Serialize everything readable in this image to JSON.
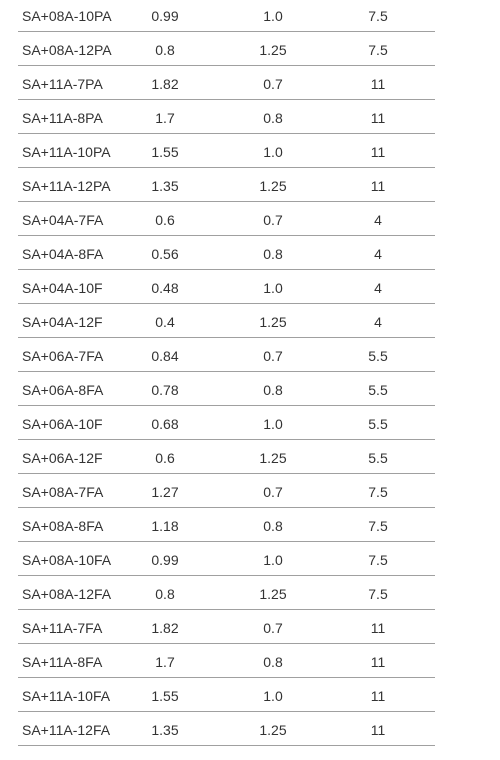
{
  "table": {
    "rows": [
      [
        "SA+08A-10PA",
        "0.99",
        "1.0",
        "7.5"
      ],
      [
        "SA+08A-12PA",
        "0.8",
        "1.25",
        "7.5"
      ],
      [
        "SA+11A-7PA",
        "1.82",
        "0.7",
        "11"
      ],
      [
        "SA+11A-8PA",
        "1.7",
        "0.8",
        "11"
      ],
      [
        "SA+11A-10PA",
        "1.55",
        "1.0",
        "11"
      ],
      [
        "SA+11A-12PA",
        "1.35",
        "1.25",
        "11"
      ],
      [
        "SA+04A-7FA",
        "0.6",
        "0.7",
        "4"
      ],
      [
        "SA+04A-8FA",
        "0.56",
        "0.8",
        "4"
      ],
      [
        "SA+04A-10F",
        "0.48",
        "1.0",
        "4"
      ],
      [
        "SA+04A-12F",
        "0.4",
        "1.25",
        "4"
      ],
      [
        "SA+06A-7FA",
        "0.84",
        "0.7",
        "5.5"
      ],
      [
        "SA+06A-8FA",
        "0.78",
        "0.8",
        "5.5"
      ],
      [
        "SA+06A-10F",
        "0.68",
        "1.0",
        "5.5"
      ],
      [
        "SA+06A-12F",
        "0.6",
        "1.25",
        "5.5"
      ],
      [
        "SA+08A-7FA",
        "1.27",
        "0.7",
        "7.5"
      ],
      [
        "SA+08A-8FA",
        "1.18",
        "0.8",
        "7.5"
      ],
      [
        "SA+08A-10FA",
        "0.99",
        "1.0",
        "7.5"
      ],
      [
        "SA+08A-12FA",
        "0.8",
        "1.25",
        "7.5"
      ],
      [
        "SA+11A-7FA",
        "1.82",
        "0.7",
        "11"
      ],
      [
        "SA+11A-8FA",
        "1.7",
        "0.8",
        "11"
      ],
      [
        "SA+11A-10FA",
        "1.55",
        "1.0",
        "11"
      ],
      [
        "SA+11A-12FA",
        "1.35",
        "1.25",
        "11"
      ]
    ]
  }
}
